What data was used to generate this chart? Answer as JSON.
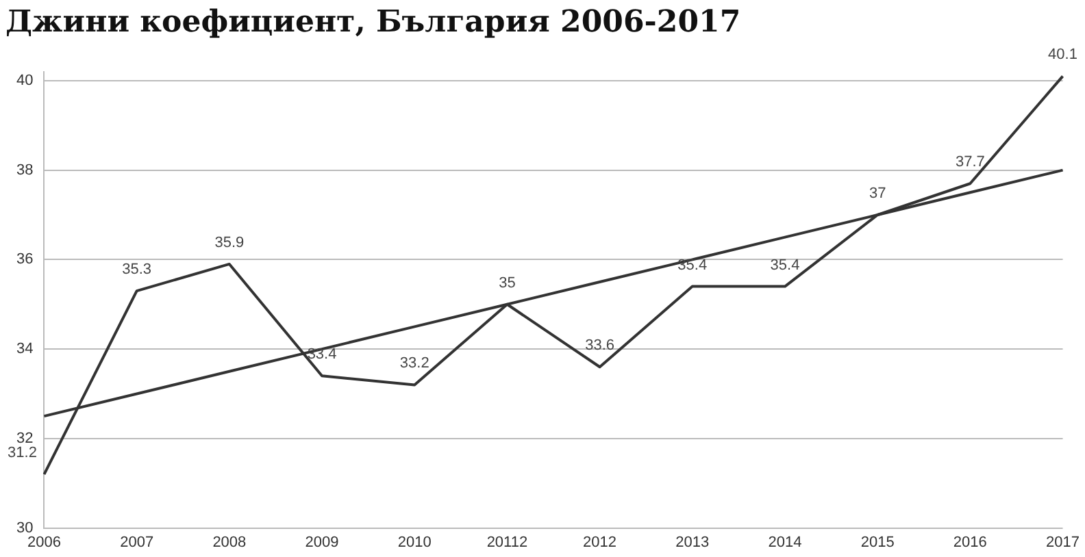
{
  "chart_data": {
    "type": "line",
    "title": "Джини коефициент, България 2006-2017",
    "categories": [
      "2006",
      "2007",
      "2008",
      "2009",
      "2010",
      "20112",
      "2012",
      "2013",
      "2014",
      "2015",
      "2016",
      "2017"
    ],
    "series": [
      {
        "color": "#333333",
        "values": [
          31.2,
          35.3,
          35.9,
          33.4,
          33.2,
          35,
          33.6,
          35.4,
          35.4,
          37,
          37.7,
          40.1
        ],
        "value_labels": [
          "31.2",
          "35.3",
          "35.9",
          "33.4",
          "33.2",
          "35",
          "33.6",
          "35.4",
          "35.4",
          "37",
          "37.7",
          "40.1"
        ]
      },
      {
        "color": "#333333",
        "values": [
          32.5,
          33.0,
          33.5,
          34.0,
          34.5,
          35.0,
          35.5,
          36.0,
          36.5,
          37.0,
          37.5,
          38.0
        ]
      }
    ],
    "ylim": [
      30,
      40.2
    ],
    "yticks": [
      30,
      32,
      34,
      36,
      38,
      40
    ],
    "grid": "y",
    "legend": false,
    "marker": "none",
    "line_style": "solid"
  }
}
